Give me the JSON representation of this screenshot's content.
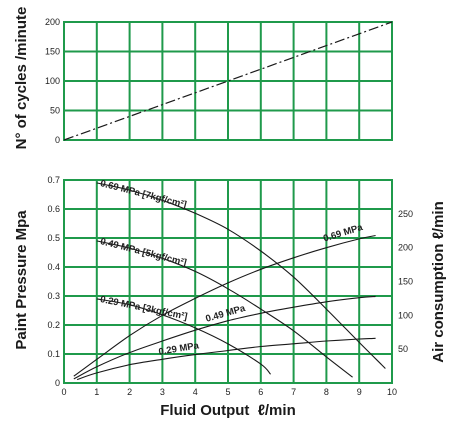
{
  "colors": {
    "background": "#ffffff",
    "panel_fill": "#ffffff",
    "grid": "#1f9a4b",
    "curve": "#1a1a1a"
  },
  "chart_data": [
    {
      "type": "line",
      "title": "",
      "ylabel": "N° of cycles /minute",
      "xlabel": "",
      "xlim": [
        0,
        10
      ],
      "ylim": [
        0,
        200
      ],
      "grid": true,
      "yticks": [
        "0",
        "50",
        "100",
        "150",
        "200"
      ],
      "series": [
        {
          "style": "dash-dot",
          "x": [
            0,
            10
          ],
          "y": [
            0,
            200
          ]
        }
      ]
    },
    {
      "type": "line",
      "title": "",
      "xlabel": "Fluid Output",
      "xlabel_unit": "ℓ/min",
      "ylabel": "Paint Pressure Mpa",
      "ylabel_right": "Air consumption ℓ/min",
      "xlim": [
        0,
        10
      ],
      "ylim": [
        0,
        0.7
      ],
      "ylim_right": [
        0,
        300
      ],
      "grid": true,
      "xticks": [
        "0",
        "1",
        "2",
        "3",
        "4",
        "5",
        "6",
        "7",
        "8",
        "9",
        "10"
      ],
      "yticks": [
        "0",
        "0.1",
        "0.2",
        "0.3",
        "0.4",
        "0.5",
        "0.6",
        "0.7"
      ],
      "yticks_right": [
        "50",
        "100",
        "150",
        "200",
        "250"
      ],
      "pressure_curves": [
        {
          "label": "0.69 MPa [7kgf/cm²]",
          "x": [
            1,
            2,
            3,
            4,
            5,
            6,
            7,
            8,
            9,
            9.8
          ],
          "y": [
            0.69,
            0.665,
            0.63,
            0.585,
            0.53,
            0.455,
            0.365,
            0.255,
            0.14,
            0.05
          ]
        },
        {
          "label": "0.49 MPa [5kgf/cm²]",
          "x": [
            1,
            2,
            3,
            4,
            5,
            6,
            7,
            8,
            8.8
          ],
          "y": [
            0.49,
            0.465,
            0.43,
            0.385,
            0.325,
            0.255,
            0.18,
            0.09,
            0.02
          ]
        },
        {
          "label": "0.29 MPa [3kgf/cm²]",
          "x": [
            1,
            2,
            3,
            4,
            5,
            6,
            6.3
          ],
          "y": [
            0.29,
            0.27,
            0.235,
            0.19,
            0.135,
            0.065,
            0.03
          ]
        }
      ],
      "air_curves": [
        {
          "label": "0.69 MPa",
          "x": [
            0.3,
            1,
            2,
            3,
            4,
            5,
            6,
            7,
            8,
            9,
            9.5
          ],
          "y": [
            10,
            35,
            70,
            100,
            125,
            148,
            168,
            185,
            200,
            213,
            218
          ]
        },
        {
          "label": "0.49 MPa",
          "x": [
            0.3,
            1,
            2,
            3,
            4,
            5,
            6,
            7,
            8,
            9,
            9.5
          ],
          "y": [
            6,
            24,
            45,
            62,
            78,
            92,
            103,
            112,
            120,
            126,
            128
          ]
        },
        {
          "label": "0.29 MPa",
          "x": [
            0.4,
            1,
            2,
            3,
            4,
            5,
            6,
            7,
            8,
            9,
            9.5
          ],
          "y": [
            5,
            15,
            27,
            35,
            42,
            48,
            54,
            58,
            62,
            65,
            66
          ]
        }
      ]
    }
  ]
}
